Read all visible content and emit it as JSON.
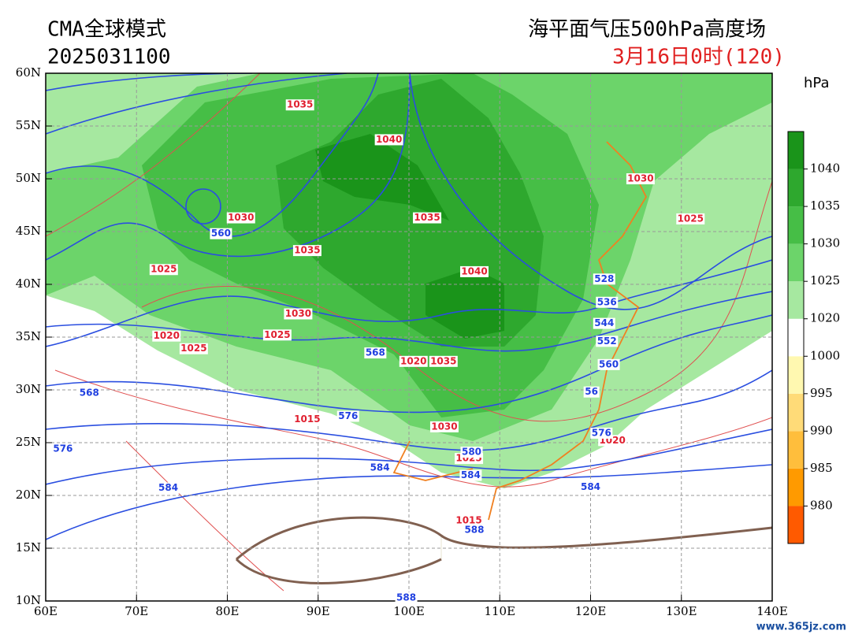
{
  "header": {
    "model": "CMA全球模式",
    "run": "2025031100",
    "product": "海平面气压500hPa高度场",
    "valid": "3月16日0时(120)"
  },
  "map": {
    "xlim": [
      60,
      140
    ],
    "ylim": [
      10,
      60
    ],
    "xticks": [
      {
        "value": 60,
        "label": "60E"
      },
      {
        "value": 70,
        "label": "70E"
      },
      {
        "value": 80,
        "label": "80E"
      },
      {
        "value": 90,
        "label": "90E"
      },
      {
        "value": 100,
        "label": "100E"
      },
      {
        "value": 110,
        "label": "110E"
      },
      {
        "value": 120,
        "label": "120E"
      },
      {
        "value": 130,
        "label": "130E"
      },
      {
        "value": 140,
        "label": "140E"
      }
    ],
    "yticks": [
      {
        "value": 10,
        "label": "10N"
      },
      {
        "value": 15,
        "label": "15N"
      },
      {
        "value": 20,
        "label": "20N"
      },
      {
        "value": 25,
        "label": "25N"
      },
      {
        "value": 30,
        "label": "30N"
      },
      {
        "value": 35,
        "label": "35N"
      },
      {
        "value": 40,
        "label": "40N"
      },
      {
        "value": 45,
        "label": "45N"
      },
      {
        "value": 50,
        "label": "50N"
      },
      {
        "value": 55,
        "label": "55N"
      },
      {
        "value": 60,
        "label": "60N"
      }
    ],
    "grid": true,
    "pressure_labels": [
      {
        "lon": 88,
        "lat": 57,
        "text": 1035
      },
      {
        "lon": 97.8,
        "lat": 53.7,
        "text": 1040
      },
      {
        "lon": 125.5,
        "lat": 50,
        "text": 1030
      },
      {
        "lon": 81.5,
        "lat": 46.3,
        "text": 1030
      },
      {
        "lon": 131,
        "lat": 46.2,
        "text": 1025
      },
      {
        "lon": 88.8,
        "lat": 43.2,
        "text": 1035
      },
      {
        "lon": 102,
        "lat": 46.3,
        "text": 1035
      },
      {
        "lon": 107.2,
        "lat": 41.2,
        "text": 1040
      },
      {
        "lon": 73,
        "lat": 41.4,
        "text": 1025
      },
      {
        "lon": 87.8,
        "lat": 37.2,
        "text": 1030
      },
      {
        "lon": 85.5,
        "lat": 35.2,
        "text": 1025
      },
      {
        "lon": 73.3,
        "lat": 35.1,
        "text": 1020
      },
      {
        "lon": 76.3,
        "lat": 33.9,
        "text": 1025
      },
      {
        "lon": 100.5,
        "lat": 32.7,
        "text": 1020
      },
      {
        "lon": 103.8,
        "lat": 32.7,
        "text": 1035
      },
      {
        "lon": 103.9,
        "lat": 26.5,
        "text": 1030
      },
      {
        "lon": 106.6,
        "lat": 23.5,
        "text": 1025
      },
      {
        "lon": 88.8,
        "lat": 27.2,
        "text": 1015
      },
      {
        "lon": 106.6,
        "lat": 17.6,
        "text": 1015
      },
      {
        "lon": 122.4,
        "lat": 25.2,
        "text": 1020
      }
    ],
    "height_labels": [
      {
        "lon": 79.3,
        "lat": 44.8,
        "text": 560
      },
      {
        "lon": 121.5,
        "lat": 40.5,
        "text": 528
      },
      {
        "lon": 121.8,
        "lat": 38.3,
        "text": 536
      },
      {
        "lon": 121.5,
        "lat": 36.3,
        "text": 544
      },
      {
        "lon": 121.8,
        "lat": 34.6,
        "text": 552
      },
      {
        "lon": 122,
        "lat": 32.4,
        "text": 560
      },
      {
        "lon": 120.1,
        "lat": 29.8,
        "text": 56
      },
      {
        "lon": 96.3,
        "lat": 33.5,
        "text": 568
      },
      {
        "lon": 64.8,
        "lat": 29.7,
        "text": 568
      },
      {
        "lon": 93.3,
        "lat": 27.5,
        "text": 576
      },
      {
        "lon": 61.9,
        "lat": 24.4,
        "text": 576
      },
      {
        "lon": 121.2,
        "lat": 25.9,
        "text": 576
      },
      {
        "lon": 106.9,
        "lat": 24.1,
        "text": 580
      },
      {
        "lon": 96.8,
        "lat": 22.6,
        "text": 584
      },
      {
        "lon": 73.5,
        "lat": 20.7,
        "text": 584
      },
      {
        "lon": 106.8,
        "lat": 21.9,
        "text": 584
      },
      {
        "lon": 120,
        "lat": 20.8,
        "text": 584
      },
      {
        "lon": 107.2,
        "lat": 16.7,
        "text": 588
      },
      {
        "lon": 99.7,
        "lat": 10.3,
        "text": 588
      }
    ]
  },
  "colorbar": {
    "label": "hPa",
    "levels": [
      980,
      985,
      990,
      995,
      1000,
      1020,
      1025,
      1030,
      1035,
      1040
    ],
    "colors": [
      "#ff5a00",
      "#ff9a00",
      "#ffbe3c",
      "#ffdb78",
      "#fff8b0",
      "#ffffff",
      "#a6e8a0",
      "#6cd46a",
      "#46be46",
      "#2ea82e",
      "#1a941a"
    ]
  },
  "watermark": "www.365jz.com"
}
